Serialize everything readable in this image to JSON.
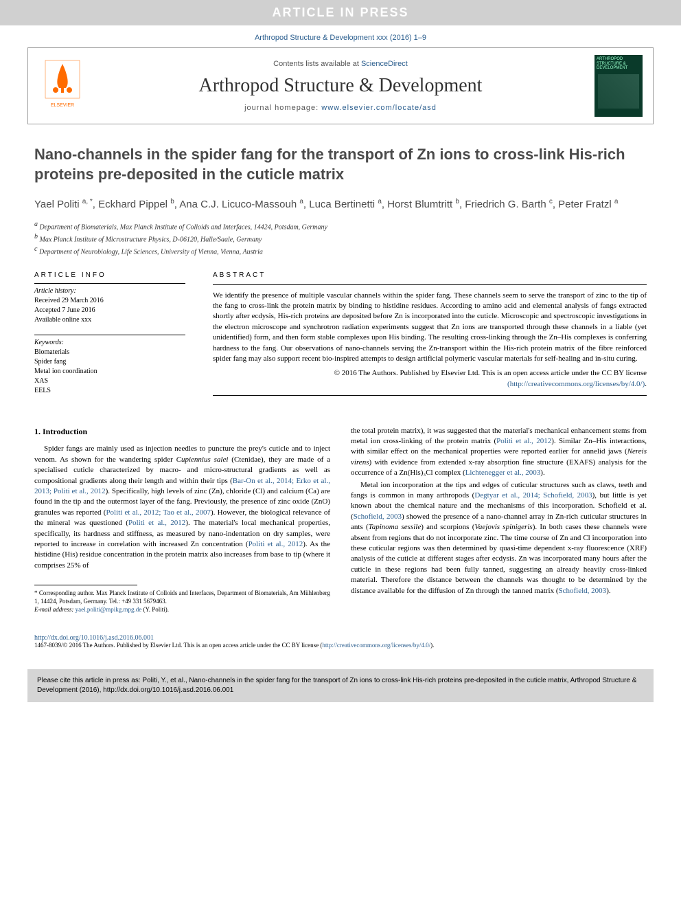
{
  "banner": "ARTICLE IN PRESS",
  "citation_top": "Arthropod Structure & Development xxx (2016) 1–9",
  "header": {
    "contents_prefix": "Contents lists available at ",
    "contents_link": "ScienceDirect",
    "journal_name": "Arthropod Structure & Development",
    "homepage_prefix": "journal homepage: ",
    "homepage_link": "www.elsevier.com/locate/asd",
    "publisher": "ELSEVIER",
    "cover_title": "ARTHROPOD STRUCTURE & DEVELOPMENT"
  },
  "title": "Nano-channels in the spider fang for the transport of Zn ions to cross-link His-rich proteins pre-deposited in the cuticle matrix",
  "authors_html": "Yael Politi <span class='sup'>a, *</span>, Eckhard Pippel <span class='sup'>b</span>, Ana C.J. Licuco-Massouh <span class='sup'>a</span>, Luca Bertinetti <span class='sup'>a</span>, Horst Blumtritt <span class='sup'>b</span>, Friedrich G. Barth <span class='sup'>c</span>, Peter Fratzl <span class='sup'>a</span>",
  "affiliations": {
    "a": "Department of Biomaterials, Max Planck Institute of Colloids and Interfaces, 14424, Potsdam, Germany",
    "b": "Max Planck Institute of Microstructure Physics, D-06120, Halle/Saale, Germany",
    "c": "Department of Neurobiology, Life Sciences, University of Vienna, Vienna, Austria"
  },
  "article_info": {
    "heading": "ARTICLE INFO",
    "history_label": "Article history:",
    "received": "Received 29 March 2016",
    "accepted": "Accepted 7 June 2016",
    "online": "Available online xxx",
    "keywords_label": "Keywords:",
    "keywords": [
      "Biomaterials",
      "Spider fang",
      "Metal ion coordination",
      "XAS",
      "EELS"
    ]
  },
  "abstract": {
    "heading": "ABSTRACT",
    "text": "We identify the presence of multiple vascular channels within the spider fang. These channels seem to serve the transport of zinc to the tip of the fang to cross-link the protein matrix by binding to histidine residues. According to amino acid and elemental analysis of fangs extracted shortly after ecdysis, His-rich proteins are deposited before Zn is incorporated into the cuticle. Microscopic and spectroscopic investigations in the electron microscope and synchrotron radiation experiments suggest that Zn ions are transported through these channels in a liable (yet unidentified) form, and then form stable complexes upon His binding. The resulting cross-linking through the Zn–His complexes is conferring hardness to the fang. Our observations of nano-channels serving the Zn-transport within the His-rich protein matrix of the fibre reinforced spider fang may also support recent bio-inspired attempts to design artificial polymeric vascular materials for self-healing and in-situ curing.",
    "copyright": "© 2016 The Authors. Published by Elsevier Ltd. This is an open access article under the CC BY license",
    "license_link": "(http://creativecommons.org/licenses/by/4.0/)"
  },
  "intro": {
    "heading": "1. Introduction",
    "p1_a": "Spider fangs are mainly used as injection needles to puncture the prey's cuticle and to inject venom. As shown for the wandering spider ",
    "p1_species": "Cupiennius salei",
    "p1_b": " (Ctenidae), they are made of a specialised cuticle characterized by macro- and micro-structural gradients as well as compositional gradients along their length and within their tips (",
    "p1_ref1": "Bar-On et al., 2014; Erko et al., 2013; Politi et al., 2012",
    "p1_c": "). Specifically, high levels of zinc (Zn), chloride (Cl) and calcium (Ca) are found in the tip and the outermost layer of the fang. Previously, the presence of zinc oxide (ZnO) granules was reported (",
    "p1_ref2": "Politi et al., 2012; Tao et al., 2007",
    "p1_d": "). However, the biological relevance of the mineral was questioned (",
    "p1_ref3": "Politi et al., 2012",
    "p1_e": "). The material's local mechanical properties, specifically, its hardness and stiffness, as measured by nano-indentation on dry samples, were reported to increase in correlation with increased Zn concentration (",
    "p1_ref4": "Politi et al., 2012",
    "p1_f": "). As the histidine (His) residue concentration in the protein matrix also increases from base to tip (where it comprises 25% of",
    "p2_a": "the total protein matrix), it was suggested that the material's mechanical enhancement stems from metal ion cross-linking of the protein matrix (",
    "p2_ref1": "Politi et al., 2012",
    "p2_b": "). Similar Zn–His interactions, with similar effect on the mechanical properties were reported earlier for annelid jaws (",
    "p2_species": "Nereis virens",
    "p2_c": ") with evidence from extended x-ray absorption fine structure (EXAFS) analysis for the occurrence of a Zn(His)₃Cl complex (",
    "p2_ref2": "Lichtenegger et al., 2003",
    "p2_d": ").",
    "p3_a": "Metal ion incorporation at the tips and edges of cuticular structures such as claws, teeth and fangs is common in many arthropods (",
    "p3_ref1": "Degtyar et al., 2014; Schofield, 2003",
    "p3_b": "), but little is yet known about the chemical nature and the mechanisms of this incorporation. Schofield et al. (",
    "p3_ref2": "Schofield, 2003",
    "p3_c": ") showed the presence of a nano-channel array in Zn-rich cuticular structures in ants (",
    "p3_sp1": "Tapinoma sessile",
    "p3_d": ") and scorpions (",
    "p3_sp2": "Vaejovis spinigeris",
    "p3_e": "). In both cases these channels were absent from regions that do not incorporate zinc. The time course of Zn and Cl incorporation into these cuticular regions was then determined by quasi-time dependent x-ray fluorescence (XRF) analysis of the cuticle at different stages after ecdysis. Zn was incorporated many hours after the cuticle in these regions had been fully tanned, suggesting an already heavily cross-linked material. Therefore the distance between the channels was thought to be determined by the distance available for the diffusion of Zn through the tanned matrix (",
    "p3_ref3": "Schofield, 2003",
    "p3_f": ")."
  },
  "footnote": {
    "corr": "* Corresponding author. Max Planck Institute of Colloids and Interfaces, Department of Biomaterials, Am Mühlenberg 1, 14424, Potsdam, Germany. Tel.: +49 331 5679463.",
    "email_label": "E-mail address: ",
    "email": "yael.politi@mpikg.mpg.de",
    "email_suffix": " (Y. Politi)."
  },
  "footer": {
    "doi": "http://dx.doi.org/10.1016/j.asd.2016.06.001",
    "issn": "1467-8039/© 2016 The Authors. Published by Elsevier Ltd. This is an open access article under the CC BY license (",
    "issn_link": "http://creativecommons.org/licenses/by/4.0/",
    "issn_suffix": ")."
  },
  "cite_box": "Please cite this article in press as: Politi, Y., et al., Nano-channels in the spider fang for the transport of Zn ions to cross-link His-rich proteins pre-deposited in the cuticle matrix, Arthropod Structure & Development (2016), http://dx.doi.org/10.1016/j.asd.2016.06.001"
}
